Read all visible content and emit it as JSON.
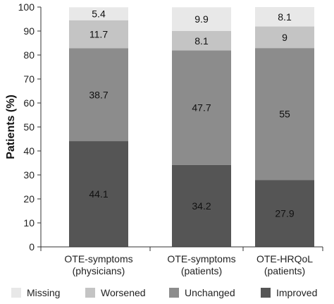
{
  "chart_data": {
    "type": "bar",
    "stacked": true,
    "categories": [
      [
        "OTE-symptoms",
        "(physicians)"
      ],
      [
        "OTE-symptoms",
        "(patients)"
      ],
      [
        "OTE-HRQoL",
        "(patients)"
      ]
    ],
    "series": [
      {
        "name": "Improved",
        "color": "#555555",
        "values": [
          44.1,
          34.2,
          27.9
        ],
        "labels": [
          "44.1",
          "34.2",
          "27.9"
        ]
      },
      {
        "name": "Unchanged",
        "color": "#8c8c8c",
        "values": [
          38.7,
          47.7,
          55
        ],
        "labels": [
          "38.7",
          "47.7",
          "55"
        ]
      },
      {
        "name": "Worsened",
        "color": "#c4c4c4",
        "values": [
          11.7,
          8.1,
          9
        ],
        "labels": [
          "11.7",
          "8.1",
          "9"
        ]
      },
      {
        "name": "Missing",
        "color": "#e8e8e8",
        "values": [
          5.4,
          9.9,
          8.1
        ],
        "labels": [
          "5.4",
          "9.9",
          "8.1"
        ]
      }
    ],
    "legend_order": [
      "Missing",
      "Worsened",
      "Unchanged",
      "Improved"
    ],
    "ylabel": "Patients (%)",
    "xlabel": "",
    "ylim": [
      0,
      100
    ],
    "yticks": [
      0,
      10,
      20,
      30,
      40,
      50,
      60,
      70,
      80,
      90,
      100
    ],
    "grid": false,
    "legend_position": "bottom"
  }
}
